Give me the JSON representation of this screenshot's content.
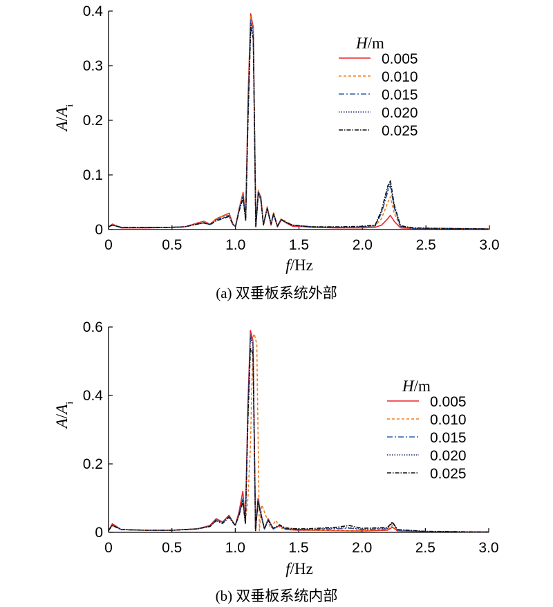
{
  "chart_data": [
    {
      "type": "line",
      "caption": "(a) 双垂板系统外部",
      "xlabel": {
        "italic": "f",
        "unit": "/Hz"
      },
      "ylabel": {
        "italic": "A",
        "sep": "/",
        "italic2": "A",
        "sub": "i"
      },
      "xlim": [
        0,
        3.0
      ],
      "ylim": [
        0,
        0.4
      ],
      "xticks": [
        "0",
        "0.5",
        "1.0",
        "1.5",
        "2.0",
        "2.5",
        "3.0"
      ],
      "yticks": [
        "0",
        "0.1",
        "0.2",
        "0.3",
        "0.4"
      ],
      "xtick_values": [
        0,
        0.5,
        1.0,
        1.5,
        2.0,
        2.5,
        3.0
      ],
      "ytick_values": [
        0,
        0.1,
        0.2,
        0.3,
        0.4
      ],
      "legend": {
        "title_italic": "H",
        "title_unit": "/m",
        "placement": "top-right"
      },
      "series": [
        {
          "name": "0.005",
          "color": "#e8262b",
          "dash": "solid",
          "x": [
            0,
            0.03,
            0.1,
            0.3,
            0.5,
            0.6,
            0.7,
            0.75,
            0.8,
            0.85,
            0.9,
            0.95,
            0.98,
            1.0,
            1.03,
            1.06,
            1.08,
            1.1,
            1.12,
            1.14,
            1.16,
            1.18,
            1.2,
            1.22,
            1.25,
            1.28,
            1.3,
            1.33,
            1.36,
            1.4,
            1.45,
            1.5,
            1.6,
            1.8,
            2.0,
            2.1,
            2.15,
            2.2,
            2.22,
            2.25,
            2.3,
            2.4,
            2.6,
            3.0
          ],
          "y": [
            0.004,
            0.01,
            0.003,
            0.003,
            0.004,
            0.005,
            0.012,
            0.015,
            0.01,
            0.02,
            0.025,
            0.03,
            0.01,
            0.005,
            0.04,
            0.068,
            0.02,
            0.25,
            0.395,
            0.37,
            0.005,
            0.07,
            0.06,
            0.008,
            0.04,
            0.008,
            0.03,
            0.005,
            0.018,
            0.012,
            0.006,
            0.006,
            0.004,
            0.003,
            0.003,
            0.004,
            0.008,
            0.02,
            0.026,
            0.015,
            0.003,
            0.002,
            0.002,
            0.001
          ]
        },
        {
          "name": "0.010",
          "color": "#ef7d22",
          "dash": "4,3",
          "x": [
            0,
            0.03,
            0.1,
            0.3,
            0.5,
            0.6,
            0.7,
            0.75,
            0.8,
            0.85,
            0.9,
            0.95,
            0.98,
            1.0,
            1.03,
            1.06,
            1.08,
            1.1,
            1.12,
            1.14,
            1.16,
            1.18,
            1.2,
            1.22,
            1.25,
            1.28,
            1.3,
            1.33,
            1.36,
            1.4,
            1.45,
            1.5,
            1.6,
            1.8,
            2.0,
            2.1,
            2.15,
            2.2,
            2.22,
            2.25,
            2.3,
            2.4,
            2.6,
            3.0
          ],
          "y": [
            0.005,
            0.009,
            0.004,
            0.004,
            0.004,
            0.005,
            0.011,
            0.014,
            0.01,
            0.02,
            0.024,
            0.028,
            0.01,
            0.006,
            0.04,
            0.065,
            0.02,
            0.24,
            0.39,
            0.365,
            0.006,
            0.072,
            0.058,
            0.009,
            0.042,
            0.01,
            0.032,
            0.006,
            0.02,
            0.014,
            0.008,
            0.007,
            0.005,
            0.004,
            0.004,
            0.006,
            0.02,
            0.05,
            0.06,
            0.03,
            0.005,
            0.002,
            0.002,
            0.001
          ]
        },
        {
          "name": "0.015",
          "color": "#2f5fa7",
          "dash": "8,3,2,3",
          "x": [
            0,
            0.03,
            0.1,
            0.3,
            0.5,
            0.6,
            0.7,
            0.75,
            0.8,
            0.85,
            0.9,
            0.95,
            0.98,
            1.0,
            1.03,
            1.06,
            1.08,
            1.1,
            1.12,
            1.14,
            1.16,
            1.18,
            1.2,
            1.22,
            1.25,
            1.28,
            1.3,
            1.33,
            1.36,
            1.4,
            1.45,
            1.5,
            1.6,
            1.8,
            2.0,
            2.1,
            2.15,
            2.2,
            2.22,
            2.25,
            2.3,
            2.4,
            2.6,
            3.0
          ],
          "y": [
            0.005,
            0.008,
            0.004,
            0.004,
            0.004,
            0.005,
            0.01,
            0.013,
            0.009,
            0.018,
            0.022,
            0.026,
            0.009,
            0.006,
            0.038,
            0.062,
            0.018,
            0.23,
            0.385,
            0.36,
            0.006,
            0.07,
            0.056,
            0.009,
            0.04,
            0.01,
            0.03,
            0.006,
            0.019,
            0.013,
            0.008,
            0.007,
            0.005,
            0.004,
            0.005,
            0.007,
            0.03,
            0.07,
            0.08,
            0.04,
            0.006,
            0.002,
            0.002,
            0.001
          ]
        },
        {
          "name": "0.020",
          "color": "#1b2a6b",
          "dash": "1.5,2",
          "x": [
            0,
            0.03,
            0.1,
            0.3,
            0.5,
            0.6,
            0.7,
            0.75,
            0.8,
            0.85,
            0.9,
            0.95,
            0.98,
            1.0,
            1.03,
            1.06,
            1.08,
            1.1,
            1.12,
            1.14,
            1.16,
            1.18,
            1.2,
            1.22,
            1.25,
            1.28,
            1.3,
            1.33,
            1.36,
            1.4,
            1.45,
            1.5,
            1.6,
            1.8,
            2.0,
            2.1,
            2.15,
            2.2,
            2.22,
            2.25,
            2.3,
            2.4,
            2.6,
            3.0
          ],
          "y": [
            0.005,
            0.008,
            0.004,
            0.004,
            0.004,
            0.005,
            0.01,
            0.012,
            0.009,
            0.017,
            0.021,
            0.025,
            0.009,
            0.006,
            0.036,
            0.06,
            0.017,
            0.22,
            0.38,
            0.355,
            0.006,
            0.068,
            0.055,
            0.009,
            0.039,
            0.01,
            0.029,
            0.006,
            0.018,
            0.013,
            0.008,
            0.007,
            0.005,
            0.004,
            0.005,
            0.007,
            0.032,
            0.075,
            0.085,
            0.042,
            0.006,
            0.002,
            0.002,
            0.001
          ]
        },
        {
          "name": "0.025",
          "color": "#111111",
          "dash": "6,2,1.5,2",
          "x": [
            0,
            0.03,
            0.1,
            0.3,
            0.5,
            0.6,
            0.7,
            0.75,
            0.8,
            0.85,
            0.9,
            0.95,
            0.98,
            1.0,
            1.03,
            1.06,
            1.08,
            1.1,
            1.12,
            1.14,
            1.16,
            1.18,
            1.2,
            1.22,
            1.25,
            1.28,
            1.3,
            1.33,
            1.36,
            1.4,
            1.45,
            1.5,
            1.6,
            1.8,
            2.0,
            2.1,
            2.15,
            2.2,
            2.22,
            2.25,
            2.3,
            2.4,
            2.6,
            3.0
          ],
          "y": [
            0.005,
            0.008,
            0.004,
            0.004,
            0.004,
            0.005,
            0.01,
            0.012,
            0.009,
            0.016,
            0.02,
            0.024,
            0.009,
            0.006,
            0.035,
            0.058,
            0.016,
            0.21,
            0.37,
            0.35,
            0.006,
            0.066,
            0.054,
            0.009,
            0.038,
            0.01,
            0.028,
            0.006,
            0.018,
            0.013,
            0.008,
            0.007,
            0.005,
            0.005,
            0.006,
            0.008,
            0.035,
            0.08,
            0.09,
            0.045,
            0.007,
            0.003,
            0.002,
            0.001
          ]
        }
      ]
    },
    {
      "type": "line",
      "caption": "(b) 双垂板系统内部",
      "xlabel": {
        "italic": "f",
        "unit": "/Hz"
      },
      "ylabel": {
        "italic": "A",
        "sep": "/",
        "italic2": "A",
        "sub": "i"
      },
      "xlim": [
        0,
        3.0
      ],
      "ylim": [
        0,
        0.6
      ],
      "xticks": [
        "0",
        "0.5",
        "1.0",
        "1.5",
        "2.0",
        "2.5",
        "3.0"
      ],
      "yticks": [
        "0",
        "0.2",
        "0.4",
        "0.6"
      ],
      "xtick_values": [
        0,
        0.5,
        1.0,
        1.5,
        2.0,
        2.5,
        3.0
      ],
      "ytick_values": [
        0,
        0.2,
        0.4,
        0.6
      ],
      "legend": {
        "title_italic": "H",
        "title_unit": "/m",
        "placement": "right"
      },
      "series": [
        {
          "name": "0.005",
          "color": "#e8262b",
          "dash": "solid",
          "x": [
            0,
            0.03,
            0.1,
            0.3,
            0.5,
            0.7,
            0.8,
            0.85,
            0.9,
            0.95,
            1.0,
            1.03,
            1.06,
            1.08,
            1.1,
            1.12,
            1.14,
            1.16,
            1.18,
            1.2,
            1.23,
            1.26,
            1.3,
            1.35,
            1.4,
            1.5,
            1.6,
            1.8,
            2.0,
            2.2,
            2.24,
            2.28,
            2.5,
            3.0
          ],
          "y": [
            0.005,
            0.025,
            0.008,
            0.006,
            0.006,
            0.01,
            0.02,
            0.04,
            0.03,
            0.05,
            0.02,
            0.06,
            0.12,
            0.03,
            0.38,
            0.59,
            0.56,
            0.005,
            0.1,
            0.06,
            0.01,
            0.04,
            0.01,
            0.02,
            0.008,
            0.006,
            0.006,
            0.005,
            0.004,
            0.006,
            0.015,
            0.004,
            0.002,
            0.001
          ]
        },
        {
          "name": "0.010",
          "color": "#ef7d22",
          "dash": "4,3",
          "x": [
            0,
            0.03,
            0.1,
            0.3,
            0.5,
            0.7,
            0.8,
            0.85,
            0.9,
            0.95,
            1.0,
            1.03,
            1.06,
            1.08,
            1.1,
            1.12,
            1.14,
            1.15,
            1.17,
            1.19,
            1.21,
            1.24,
            1.28,
            1.32,
            1.36,
            1.4,
            1.5,
            1.6,
            1.8,
            2.0,
            2.2,
            2.24,
            2.28,
            2.5,
            3.0
          ],
          "y": [
            0.005,
            0.02,
            0.008,
            0.006,
            0.006,
            0.01,
            0.018,
            0.035,
            0.028,
            0.045,
            0.02,
            0.05,
            0.1,
            0.03,
            0.1,
            0.25,
            0.57,
            0.58,
            0.55,
            0.005,
            0.08,
            0.05,
            0.012,
            0.035,
            0.01,
            0.015,
            0.007,
            0.006,
            0.005,
            0.005,
            0.008,
            0.02,
            0.005,
            0.002,
            0.001
          ]
        },
        {
          "name": "0.015",
          "color": "#2f5fa7",
          "dash": "8,3,2,3",
          "x": [
            0,
            0.03,
            0.1,
            0.3,
            0.5,
            0.7,
            0.8,
            0.85,
            0.9,
            0.95,
            1.0,
            1.03,
            1.06,
            1.08,
            1.1,
            1.12,
            1.14,
            1.16,
            1.18,
            1.2,
            1.23,
            1.26,
            1.3,
            1.35,
            1.4,
            1.5,
            1.6,
            1.8,
            1.9,
            2.0,
            2.2,
            2.24,
            2.28,
            2.5,
            3.0
          ],
          "y": [
            0.005,
            0.022,
            0.008,
            0.006,
            0.006,
            0.01,
            0.018,
            0.038,
            0.028,
            0.048,
            0.02,
            0.055,
            0.1,
            0.028,
            0.36,
            0.58,
            0.55,
            0.005,
            0.095,
            0.058,
            0.01,
            0.038,
            0.01,
            0.02,
            0.009,
            0.007,
            0.008,
            0.01,
            0.012,
            0.008,
            0.01,
            0.028,
            0.006,
            0.002,
            0.001
          ]
        },
        {
          "name": "0.020",
          "color": "#1b2a6b",
          "dash": "1.5,2",
          "x": [
            0,
            0.03,
            0.1,
            0.3,
            0.5,
            0.7,
            0.8,
            0.85,
            0.9,
            0.95,
            1.0,
            1.03,
            1.06,
            1.08,
            1.1,
            1.12,
            1.14,
            1.16,
            1.18,
            1.2,
            1.23,
            1.26,
            1.3,
            1.35,
            1.4,
            1.5,
            1.6,
            1.8,
            1.9,
            2.0,
            2.2,
            2.24,
            2.28,
            2.5,
            3.0
          ],
          "y": [
            0.005,
            0.022,
            0.008,
            0.006,
            0.006,
            0.01,
            0.018,
            0.036,
            0.027,
            0.046,
            0.02,
            0.052,
            0.095,
            0.028,
            0.35,
            0.57,
            0.545,
            0.005,
            0.092,
            0.056,
            0.01,
            0.036,
            0.01,
            0.02,
            0.01,
            0.008,
            0.009,
            0.012,
            0.014,
            0.009,
            0.012,
            0.03,
            0.007,
            0.002,
            0.001
          ]
        },
        {
          "name": "0.025",
          "color": "#111111",
          "dash": "6,2,1.5,2",
          "x": [
            0,
            0.03,
            0.1,
            0.3,
            0.5,
            0.7,
            0.8,
            0.85,
            0.9,
            0.95,
            1.0,
            1.03,
            1.06,
            1.08,
            1.1,
            1.12,
            1.14,
            1.16,
            1.18,
            1.2,
            1.23,
            1.26,
            1.3,
            1.35,
            1.4,
            1.5,
            1.6,
            1.8,
            1.9,
            2.0,
            2.2,
            2.24,
            2.28,
            2.5,
            3.0
          ],
          "y": [
            0.005,
            0.02,
            0.008,
            0.006,
            0.006,
            0.01,
            0.017,
            0.034,
            0.026,
            0.044,
            0.02,
            0.05,
            0.09,
            0.026,
            0.33,
            0.54,
            0.52,
            0.005,
            0.09,
            0.055,
            0.01,
            0.035,
            0.012,
            0.022,
            0.012,
            0.01,
            0.011,
            0.015,
            0.02,
            0.012,
            0.014,
            0.03,
            0.008,
            0.003,
            0.001
          ]
        }
      ]
    }
  ]
}
